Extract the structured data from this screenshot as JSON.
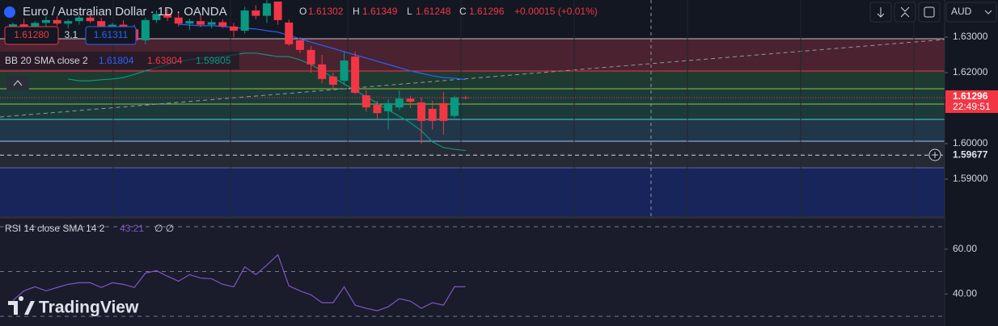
{
  "header": {
    "symbol": "Euro / Australian Dollar · 1D · OANDA",
    "o_label": "O",
    "h_label": "H",
    "l_label": "L",
    "c_label": "C",
    "change": "+0.00015 (+0.01%)",
    "sell": "1.61280",
    "spread": "3.1",
    "buy": "1.61311",
    "currency": "AUD",
    "bb_label": "BB 20 SMA close 2",
    "bb_upper": "1.63804",
    "rsi_label": "RSI 14 close SMA 14 2",
    "rsi_extra": "∅ ∅",
    "countdown": "22:49:51",
    "logo": "TradingView"
  },
  "chart_data": [
    {
      "type": "candlestick",
      "categories": [
        null,
        null,
        null,
        null,
        null,
        null,
        null,
        null,
        null,
        null,
        null,
        null,
        null,
        null,
        null,
        null,
        null,
        null,
        null,
        null,
        null,
        null,
        null,
        null,
        null,
        null,
        null,
        null,
        null,
        null,
        null,
        null,
        null,
        null,
        null,
        null,
        null,
        null,
        null,
        null,
        null,
        null
      ],
      "open": [
        1.6325,
        1.6336,
        1.633,
        1.634,
        1.6348,
        1.6338,
        1.6345,
        1.6355,
        1.6345,
        1.6328,
        1.6335,
        1.6322,
        1.6291,
        1.6348,
        1.6365,
        1.6355,
        1.6338,
        1.6345,
        1.6335,
        1.6342,
        1.633,
        1.6318,
        1.6375,
        1.636,
        1.64,
        1.6341,
        1.6291,
        1.6264,
        1.6223,
        1.6189,
        1.6177,
        1.6245,
        1.6136,
        1.6109,
        1.6091,
        1.6102,
        1.6127,
        1.6116,
        1.6098,
        1.6114,
        1.6078,
        1.61302
      ],
      "high": [
        1.6341,
        1.6352,
        1.6345,
        1.6358,
        1.636,
        1.635,
        1.6362,
        1.6366,
        1.6355,
        1.634,
        1.6348,
        1.6335,
        1.6355,
        1.6375,
        1.638,
        1.637,
        1.6352,
        1.636,
        1.635,
        1.635,
        1.634,
        1.6385,
        1.639,
        1.6405,
        1.64,
        1.635,
        1.63,
        1.6275,
        1.625,
        1.62,
        1.626,
        1.626,
        1.615,
        1.612,
        1.6125,
        1.615,
        1.6135,
        1.613,
        1.612,
        1.6145,
        1.6135,
        1.61349
      ],
      "low": [
        1.6314,
        1.632,
        1.6318,
        1.633,
        1.6332,
        1.6325,
        1.6335,
        1.634,
        1.6322,
        1.631,
        1.6318,
        1.6285,
        1.628,
        1.634,
        1.6345,
        1.633,
        1.632,
        1.6328,
        1.6325,
        1.6325,
        1.63,
        1.631,
        1.635,
        1.634,
        1.6335,
        1.6275,
        1.6255,
        1.62,
        1.617,
        1.6155,
        1.6165,
        1.614,
        1.609,
        1.607,
        1.604,
        1.6095,
        1.61,
        1.6,
        1.604,
        1.6025,
        1.6072,
        1.61248
      ],
      "close": [
        1.6336,
        1.633,
        1.634,
        1.6348,
        1.6338,
        1.6345,
        1.6355,
        1.6345,
        1.6328,
        1.6335,
        1.6322,
        1.6291,
        1.6348,
        1.6365,
        1.6355,
        1.6338,
        1.6345,
        1.6335,
        1.6342,
        1.633,
        1.6318,
        1.6375,
        1.636,
        1.6395,
        1.6348,
        1.628,
        1.6264,
        1.6223,
        1.6182,
        1.6166,
        1.6234,
        1.6143,
        1.6102,
        1.6086,
        1.6114,
        1.6127,
        1.6118,
        1.6064,
        1.6064,
        1.6064,
        1.613,
        1.61296
      ],
      "up_color": "#089981",
      "down_color": "#f23645",
      "overlays": [
        {
          "color": "#2962ff",
          "values": [
            null,
            null,
            null,
            null,
            null,
            null,
            null,
            null,
            null,
            null,
            null,
            null,
            null,
            null,
            null,
            1.6336,
            1.6334,
            1.6332,
            1.6332,
            1.633,
            1.6327,
            1.6325,
            1.6323,
            1.6318,
            1.6314,
            1.6305,
            1.6295,
            1.6286,
            1.6277,
            1.6268,
            1.6259,
            1.625,
            1.6241,
            1.6232,
            1.6223,
            1.6214,
            1.6205,
            1.6198,
            1.6191,
            1.6186,
            1.6184,
            1.61804
          ]
        },
        {
          "color": "#089981",
          "values": [
            null,
            null,
            null,
            null,
            null,
            1.6182,
            1.6177,
            1.6177,
            1.618,
            1.6182,
            1.6186,
            1.6195,
            1.6205,
            1.6214,
            1.6223,
            1.6232,
            1.6236,
            1.6241,
            1.6241,
            1.6245,
            1.625,
            1.6255,
            1.6255,
            1.625,
            1.6245,
            1.6245,
            1.6236,
            1.6223,
            1.6205,
            1.6186,
            1.6168,
            1.615,
            1.6132,
            1.6114,
            1.6095,
            1.6077,
            1.6059,
            1.6036,
            1.6005,
            1.5989,
            1.5984,
            1.59805
          ]
        }
      ],
      "hline": 1.59677,
      "ylim": [
        1.57955,
        1.64045
      ],
      "yticks": [
        {
          "value": 1.63,
          "label": "1.63000"
        },
        {
          "value": 1.62,
          "label": "1.62000"
        },
        {
          "value": 1.6,
          "label": "1.60000"
        },
        {
          "value": 1.59,
          "label": "1.59000"
        }
      ]
    },
    {
      "type": "line",
      "categories": [
        null,
        null,
        null,
        null,
        null,
        null,
        null,
        null,
        null,
        null,
        null,
        null,
        null,
        null,
        null,
        null,
        null,
        null,
        null,
        null,
        null,
        null,
        null,
        null,
        null,
        null,
        null,
        null,
        null,
        null,
        null,
        null,
        null,
        null,
        null,
        null,
        null,
        null,
        null,
        null,
        null,
        null
      ],
      "values": [
        37.1,
        41.4,
        43.2,
        41.4,
        42.9,
        44.3,
        45,
        45,
        42.9,
        45,
        44.3,
        42.9,
        49.3,
        50.4,
        47.9,
        45.7,
        48.6,
        47.1,
        46.8,
        44.3,
        43.2,
        52.1,
        48.6,
        52.9,
        57.5,
        43.6,
        41.4,
        39.6,
        36.1,
        36.1,
        43.2,
        35,
        33.6,
        32.5,
        34.3,
        37.9,
        36.8,
        33.6,
        36.1,
        35,
        43.2,
        43.21
      ],
      "color": "#7e57c2",
      "levels": [
        70,
        50,
        30
      ],
      "ylim": [
        25.7,
        73.6
      ],
      "yticks": [
        {
          "value": 60,
          "label": "60.00"
        },
        {
          "value": 40,
          "label": "40.00"
        }
      ]
    }
  ]
}
